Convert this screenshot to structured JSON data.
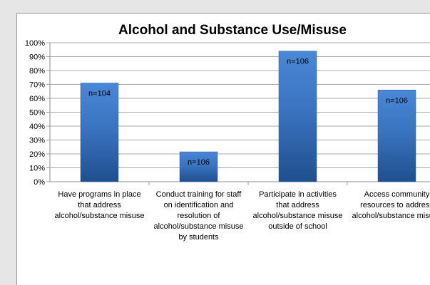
{
  "chart_data": {
    "type": "bar",
    "title": "Alcohol and Substance Use/Misuse",
    "xlabel": "",
    "ylabel": "",
    "ylim": [
      0,
      100
    ],
    "y_ticks": [
      "0%",
      "10%",
      "20%",
      "30%",
      "40%",
      "50%",
      "60%",
      "70%",
      "80%",
      "90%",
      "100%"
    ],
    "grid": true,
    "legend": "none",
    "bar_color": "#3a74c0",
    "categories": [
      [
        "Have programs in place",
        "that address",
        "alcohol/substance misuse"
      ],
      [
        "Conduct training for staff",
        "on identification and",
        "resolution of",
        "alcohol/substance misuse",
        "by students"
      ],
      [
        "Participate in activities",
        "that address",
        "alcohol/substance misuse",
        "outside of school"
      ],
      [
        "Access community",
        "resources to address",
        "alcohol/substance misuse"
      ]
    ],
    "values": [
      71,
      21.5,
      94,
      66
    ],
    "data_labels": [
      "n=104",
      "n=106",
      "n=106",
      "n=106"
    ]
  }
}
